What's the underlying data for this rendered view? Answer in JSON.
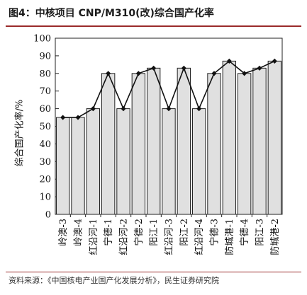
{
  "figure": {
    "title": "图4：中核项目 CNP/M310(改)综合国产化率",
    "source": "资料来源：《中国核电产业国产化发展分析》，民生证券研究院"
  },
  "chart_data": {
    "type": "bar",
    "categories": [
      "岭澳-3",
      "岭澳-4",
      "红沿河-1",
      "宁德-1",
      "红沿河-2",
      "宁德-2",
      "阳江-1",
      "红沿河-3",
      "阳江-2",
      "红沿河-4",
      "宁德-3",
      "防城港-1",
      "宁德-4",
      "阳江-3",
      "防城港-2"
    ],
    "values": [
      55,
      55,
      60,
      80,
      60,
      80,
      83,
      60,
      83,
      60,
      80,
      87,
      80,
      83,
      87
    ],
    "line_values": [
      55,
      55,
      60,
      80,
      60,
      80,
      83,
      60,
      83,
      60,
      80,
      87,
      80,
      83,
      87
    ],
    "ylabel": "综合国产化率/%",
    "ylim": [
      0,
      100
    ],
    "yticks": [
      0,
      10,
      20,
      30,
      40,
      50,
      60,
      70,
      80,
      90,
      100
    ],
    "grid": false,
    "colors": {
      "bar_fill": "#e0e0e0",
      "bar_stroke": "#222222",
      "line": "#111111"
    }
  }
}
